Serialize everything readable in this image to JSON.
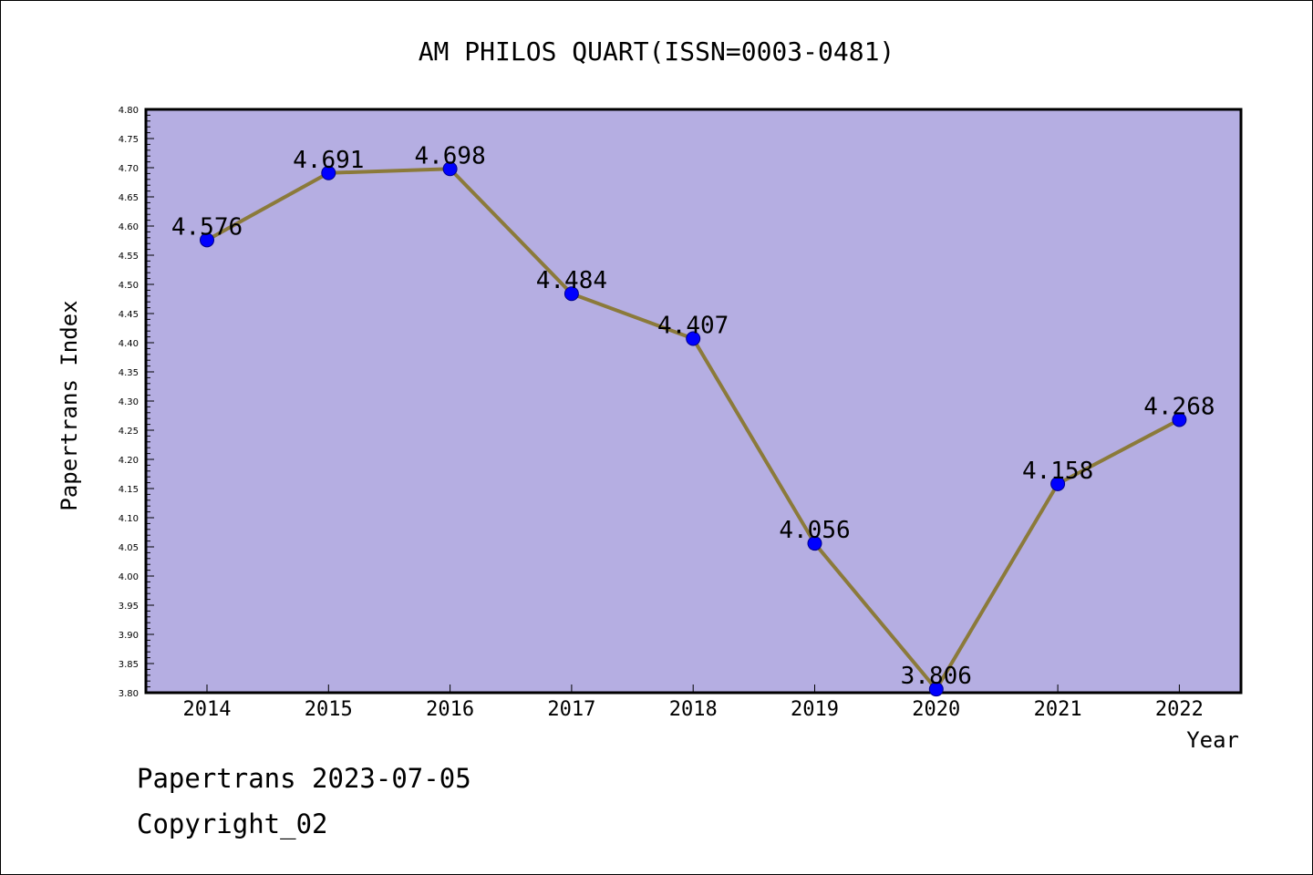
{
  "chart_data": {
    "type": "line",
    "title": "AM PHILOS QUART(ISSN=0003-0481)",
    "xlabel": "Year",
    "ylabel": "Papertrans Index",
    "categories": [
      "2014",
      "2015",
      "2016",
      "2017",
      "2018",
      "2019",
      "2020",
      "2021",
      "2022"
    ],
    "values": [
      4.576,
      4.691,
      4.698,
      4.484,
      4.407,
      4.056,
      3.806,
      4.158,
      4.268
    ],
    "data_labels": [
      "4.576",
      "4.691",
      "4.698",
      "4.484",
      "4.407",
      "4.056",
      "3.806",
      "4.158",
      "4.268"
    ],
    "ylim": [
      3.8,
      4.8
    ],
    "ytick_labels": [
      "3.80",
      "3.85",
      "3.90",
      "3.95",
      "4.00",
      "4.05",
      "4.10",
      "4.15",
      "4.20",
      "4.25",
      "4.30",
      "4.35",
      "4.40",
      "4.45",
      "4.50",
      "4.55",
      "4.60",
      "4.65",
      "4.70",
      "4.75",
      "4.80"
    ],
    "grid": false,
    "legend": "none",
    "colors": {
      "plot_background": "#b5aee2",
      "line": "#8b7a3a",
      "marker": "#0000ff"
    }
  },
  "footer": {
    "line1": "Papertrans 2023-07-05",
    "line2": "Copyright_02"
  }
}
